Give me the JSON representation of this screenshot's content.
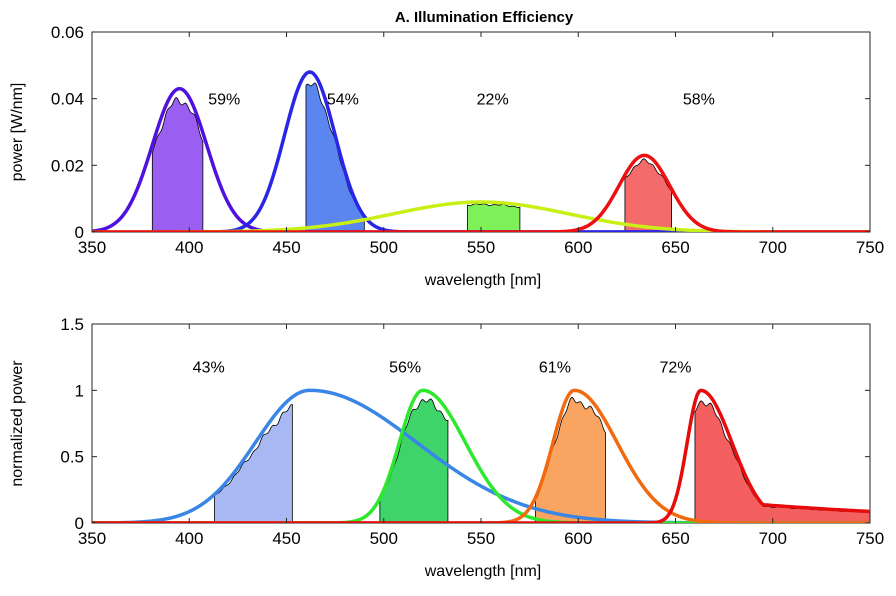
{
  "chart_data": [
    {
      "type": "line",
      "title": "A. Illumination Efficiency",
      "xlabel": "wavelength [nm]",
      "ylabel": "power [W/nm]",
      "xlim": [
        350,
        750
      ],
      "ylim": [
        0,
        0.06
      ],
      "xticks": [
        350,
        400,
        450,
        500,
        550,
        600,
        650,
        700,
        750
      ],
      "yticks": [
        0,
        0.02,
        0.04,
        0.06
      ],
      "yticklabels": [
        "0",
        "0.02",
        "0.04",
        "0.06"
      ],
      "grid": false,
      "series": [
        {
          "color": "#5010e0",
          "shape": "gauss",
          "center": 395,
          "peak": 0.043,
          "sigma": 14,
          "band": [
            381,
            407
          ],
          "fill": "#9a5ef0",
          "efficiency": "59%"
        },
        {
          "color": "#2a26e8",
          "shape": "gauss",
          "center": 462,
          "peak": 0.048,
          "sigma": 13,
          "band": [
            460,
            490
          ],
          "fill": "#5b86f0",
          "efficiency": "54%"
        },
        {
          "color": "#c8f016",
          "shape": "gauss",
          "center": 550,
          "peak": 0.009,
          "sigma": 45,
          "band": [
            543,
            570
          ],
          "fill": "#7ef05a",
          "efficiency": "22%"
        },
        {
          "color": "#ee1010",
          "shape": "gauss",
          "center": 634,
          "peak": 0.023,
          "sigma": 13,
          "band": [
            624,
            648
          ],
          "fill": "#f56a6a",
          "efficiency": "58%"
        }
      ],
      "annotations": [
        {
          "text": "59%",
          "x": 418,
          "y": 0.04
        },
        {
          "text": "54%",
          "x": 479,
          "y": 0.04
        },
        {
          "text": "22%",
          "x": 556,
          "y": 0.04
        },
        {
          "text": "58%",
          "x": 662,
          "y": 0.04
        }
      ]
    },
    {
      "type": "line",
      "title": "",
      "xlabel": "wavelength [nm]",
      "ylabel": "normalized power",
      "xlim": [
        350,
        750
      ],
      "ylim": [
        0,
        1.5
      ],
      "xticks": [
        350,
        400,
        450,
        500,
        550,
        600,
        650,
        700,
        750
      ],
      "yticks": [
        0,
        0.5,
        1,
        1.5
      ],
      "yticklabels": [
        "0",
        "0.5",
        "1",
        "1.5"
      ],
      "grid": false,
      "series": [
        {
          "color": "#3a86e6",
          "shape": "skew",
          "center": 462,
          "peak": 1.0,
          "sigmaL": 28,
          "sigmaR": 55,
          "band": [
            413,
            453
          ],
          "fill": "#a8b8f2",
          "efficiency": "43%"
        },
        {
          "color": "#2ee82e",
          "shape": "skew",
          "center": 520,
          "peak": 1.0,
          "sigmaL": 12,
          "sigmaR": 22,
          "band": [
            498,
            533
          ],
          "fill": "#3ed46a",
          "efficiency": "56%"
        },
        {
          "color": "#f26a10",
          "shape": "skew",
          "center": 598,
          "peak": 1.0,
          "sigmaL": 11,
          "sigmaR": 22,
          "band": [
            578,
            614
          ],
          "fill": "#f9a460",
          "efficiency": "61%"
        },
        {
          "color": "#e60c0c",
          "shape": "skewtail",
          "center": 663,
          "peak": 1.0,
          "sigmaL": 7,
          "sigmaR": 16,
          "band": [
            660,
            750
          ],
          "fill": "#f46060",
          "efficiency": "72%"
        }
      ],
      "annotations": [
        {
          "text": "43%",
          "x": 410,
          "y": 1.18
        },
        {
          "text": "56%",
          "x": 511,
          "y": 1.18
        },
        {
          "text": "61%",
          "x": 588,
          "y": 1.18
        },
        {
          "text": "72%",
          "x": 650,
          "y": 1.18
        }
      ]
    }
  ]
}
